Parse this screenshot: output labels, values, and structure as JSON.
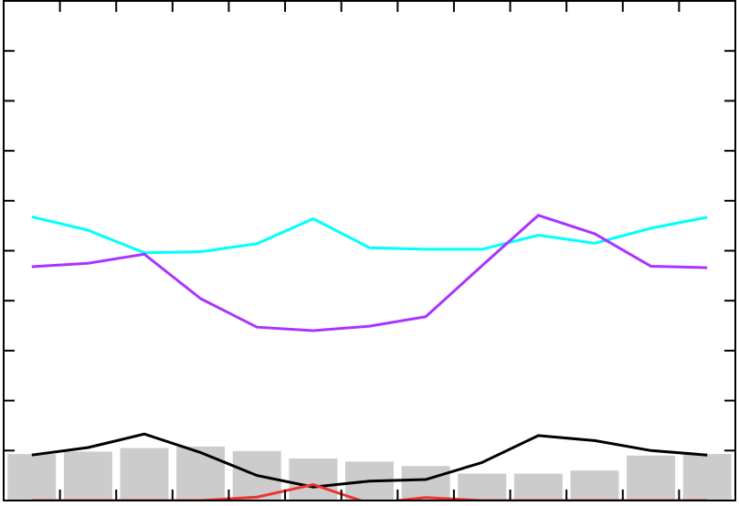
{
  "chart_data": {
    "type": "line",
    "title": "",
    "xlabel": "",
    "ylabel": "",
    "grid": false,
    "legend": "none",
    "x": [
      1,
      2,
      3,
      4,
      5,
      6,
      7,
      8,
      9,
      10,
      11,
      12,
      13
    ],
    "xlim": [
      0.5,
      13.5
    ],
    "ylim": [
      0,
      100
    ],
    "x_ticks": [
      1.5,
      2.5,
      3.5,
      4.5,
      5.5,
      6.5,
      7.5,
      8.5,
      9.5,
      10.5,
      11.5,
      12.5
    ],
    "y_ticks": [
      10,
      20,
      30,
      40,
      50,
      60,
      70,
      80,
      90
    ],
    "bars": {
      "color": "#cccccc",
      "values": [
        9.3,
        9.8,
        10.5,
        10.8,
        9.9,
        8.4,
        7.8,
        6.9,
        5.4,
        5.4,
        6.0,
        9.0,
        9.3
      ]
    },
    "series": [
      {
        "color": "#00ffff",
        "values": [
          56.8,
          54.1,
          49.6,
          49.8,
          51.4,
          56.4,
          50.6,
          50.3,
          50.3,
          53.1,
          51.5,
          54.5,
          56.7
        ]
      },
      {
        "color": "#aa33ff",
        "values": [
          46.8,
          47.5,
          49.3,
          40.4,
          34.7,
          34.0,
          34.9,
          36.8,
          47.0,
          57.1,
          53.4,
          46.9,
          46.6
        ]
      },
      {
        "color": "#000000",
        "values": [
          9.1,
          10.6,
          13.3,
          9.6,
          5.0,
          2.7,
          3.9,
          4.2,
          7.6,
          13.0,
          12.0,
          10.0,
          9.1
        ]
      },
      {
        "color": "#ee3333",
        "values": [
          0.0,
          0.0,
          0.0,
          0.0,
          0.7,
          3.2,
          -0.6,
          0.6,
          0.0,
          0.0,
          0.0,
          0.0,
          0.0
        ]
      }
    ]
  }
}
